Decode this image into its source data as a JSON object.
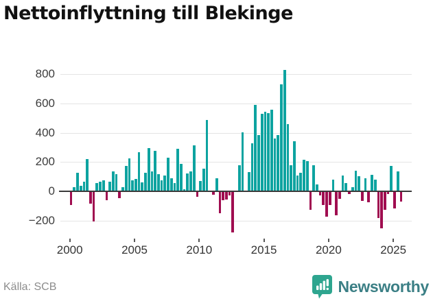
{
  "header": {
    "title": "Nettoinflyttning till Blekinge"
  },
  "footer": {
    "source_label": "Källa: SCB",
    "brand": "Newsworthy"
  },
  "colors": {
    "positive_bar": "#0da3a0",
    "negative_bar": "#a00d50",
    "grid": "#e4e4e4",
    "zero_line": "#3a3a3a",
    "title_text": "#111111",
    "axis_text": "#3c3c3c",
    "source_text": "#8c8c8c",
    "brand_text": "#3b7f85",
    "brand_badge": "#2ea58f"
  },
  "chart_data": {
    "type": "bar",
    "title": "Nettoinflyttning till Blekinge",
    "source": "SCB",
    "frequency": "quarterly",
    "x_start": "2000-Q1",
    "x_end": "2025-Q3",
    "xlabel": "",
    "ylabel": "",
    "ylim": [
      -320,
      915
    ],
    "grid": true,
    "y_ticks": [
      {
        "label": "800",
        "value": 800
      },
      {
        "label": "600",
        "value": 600
      },
      {
        "label": "400",
        "value": 400
      },
      {
        "label": "200",
        "value": 200
      },
      {
        "label": "0",
        "value": 0
      },
      {
        "label": "−200",
        "value": -200
      }
    ],
    "x_ticks": [
      {
        "label": "2000",
        "year": 2000
      },
      {
        "label": "2005",
        "year": 2005
      },
      {
        "label": "2010",
        "year": 2010
      },
      {
        "label": "2015",
        "year": 2015
      },
      {
        "label": "2020",
        "year": 2020
      },
      {
        "label": "2025",
        "year": 2025
      }
    ],
    "values": [
      -94,
      27,
      128,
      39,
      67,
      222,
      -83,
      -205,
      55,
      66,
      73,
      -63,
      66,
      136,
      117,
      -47,
      27,
      172,
      225,
      75,
      85,
      265,
      60,
      125,
      295,
      135,
      275,
      115,
      73,
      106,
      230,
      89,
      55,
      289,
      188,
      16,
      120,
      136,
      313,
      -39,
      70,
      156,
      489,
      0,
      -23,
      91,
      -148,
      -63,
      -55,
      -28,
      -281,
      0,
      180,
      402,
      0,
      133,
      328,
      589,
      383,
      531,
      542,
      536,
      558,
      359,
      386,
      730,
      828,
      461,
      177,
      344,
      109,
      128,
      214,
      206,
      -125,
      180,
      45,
      -30,
      -95,
      -175,
      -95,
      80,
      -165,
      -52,
      108,
      55,
      -20,
      27,
      139,
      105,
      -67,
      89,
      -75,
      114,
      78,
      -184,
      -255,
      -125,
      -20,
      175,
      -115,
      135,
      -70
    ]
  }
}
